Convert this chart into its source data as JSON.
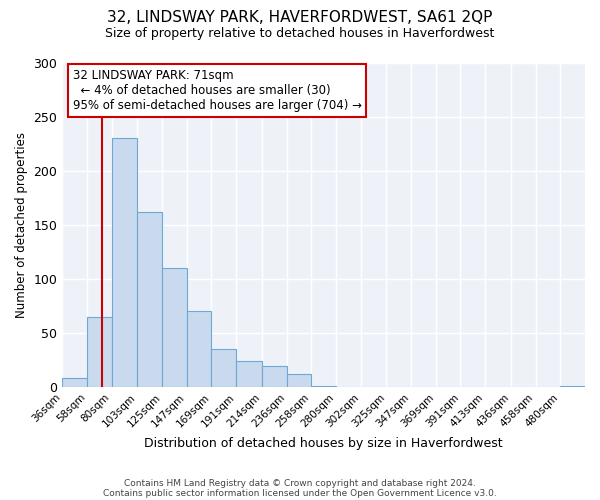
{
  "title": "32, LINDSWAY PARK, HAVERFORDWEST, SA61 2QP",
  "subtitle": "Size of property relative to detached houses in Haverfordwest",
  "xlabel": "Distribution of detached houses by size in Haverfordwest",
  "ylabel": "Number of detached properties",
  "bar_labels": [
    "36sqm",
    "58sqm",
    "80sqm",
    "103sqm",
    "125sqm",
    "147sqm",
    "169sqm",
    "191sqm",
    "214sqm",
    "236sqm",
    "258sqm",
    "280sqm",
    "302sqm",
    "325sqm",
    "347sqm",
    "369sqm",
    "391sqm",
    "413sqm",
    "436sqm",
    "458sqm",
    "480sqm"
  ],
  "bar_heights": [
    8,
    65,
    230,
    162,
    110,
    70,
    35,
    24,
    19,
    12,
    1,
    0,
    0,
    0,
    0,
    0,
    0,
    0,
    0,
    0,
    1
  ],
  "bar_color": "#c9d9ee",
  "bar_edge_color": "#6aaad4",
  "vline_x": 71,
  "vline_color": "#cc0000",
  "ylim": [
    0,
    300
  ],
  "yticks": [
    0,
    50,
    100,
    150,
    200,
    250,
    300
  ],
  "annotation_title": "32 LINDSWAY PARK: 71sqm",
  "annotation_line1": "← 4% of detached houses are smaller (30)",
  "annotation_line2": "95% of semi-detached houses are larger (704) →",
  "annotation_box_color": "#cc0000",
  "footer_line1": "Contains HM Land Registry data © Crown copyright and database right 2024.",
  "footer_line2": "Contains public sector information licensed under the Open Government Licence v3.0.",
  "bin_edges": [
    36,
    58,
    80,
    103,
    125,
    147,
    169,
    191,
    214,
    236,
    258,
    280,
    302,
    325,
    347,
    369,
    391,
    413,
    436,
    458,
    480
  ],
  "bg_color": "#eef2f8",
  "title_fontsize": 11,
  "subtitle_fontsize": 9
}
